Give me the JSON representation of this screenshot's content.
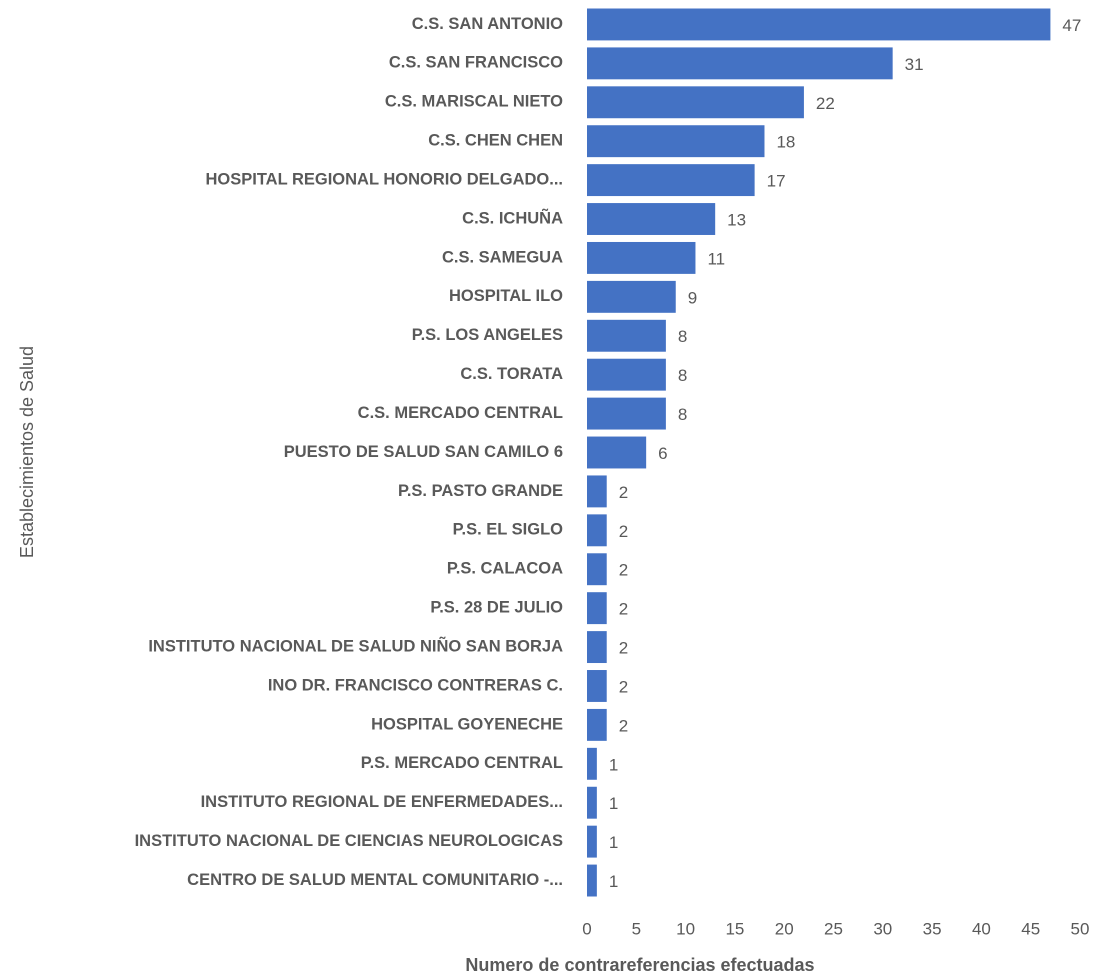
{
  "chart_data": {
    "type": "bar",
    "orientation": "horizontal",
    "x_label": "Numero de contrareferencias efectuadas",
    "y_label": "Establecimientos de Salud",
    "categories": [
      "C.S. SAN ANTONIO",
      "C.S. SAN FRANCISCO",
      "C.S. MARISCAL NIETO",
      "C.S. CHEN CHEN",
      "HOSPITAL REGIONAL HONORIO DELGADO...",
      "C.S. ICHUÑA",
      "C.S. SAMEGUA",
      "HOSPITAL ILO",
      "P.S. LOS ANGELES",
      "C.S. TORATA",
      "C.S. MERCADO CENTRAL",
      "PUESTO DE SALUD SAN CAMILO 6",
      "P.S. PASTO GRANDE",
      "P.S. EL SIGLO",
      "P.S. CALACOA",
      "P.S. 28 DE JULIO",
      "INSTITUTO NACIONAL DE SALUD NIÑO SAN BORJA",
      "INO DR. FRANCISCO CONTRERAS C.",
      "HOSPITAL GOYENECHE",
      "P.S. MERCADO CENTRAL",
      "INSTITUTO REGIONAL DE ENFERMEDADES...",
      "INSTITUTO NACIONAL DE CIENCIAS NEUROLOGICAS",
      "CENTRO DE SALUD MENTAL COMUNITARIO -..."
    ],
    "values": [
      47,
      31,
      22,
      18,
      17,
      13,
      11,
      9,
      8,
      8,
      8,
      6,
      2,
      2,
      2,
      2,
      2,
      2,
      2,
      1,
      1,
      1,
      1
    ],
    "color": "#4472c4",
    "xlim": [
      0,
      50
    ],
    "xticks": [
      0,
      5,
      10,
      15,
      20,
      25,
      30,
      35,
      40,
      45,
      50
    ],
    "grid": false
  }
}
